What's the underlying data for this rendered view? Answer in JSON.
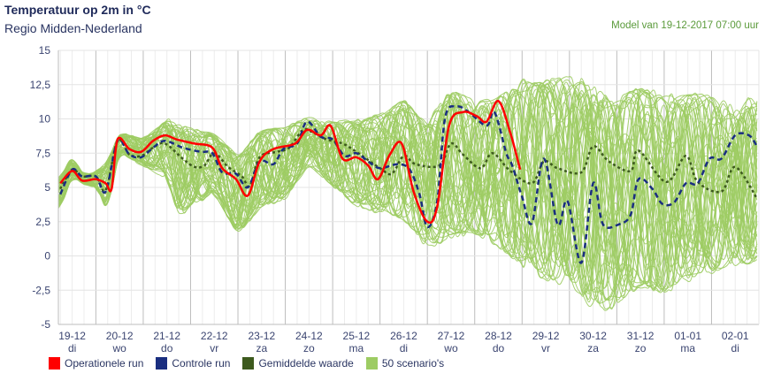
{
  "header": {
    "title": "Temperatuur op 2m in °C",
    "subtitle": "Regio Midden-Nederland",
    "model_run": "Model van 19-12-2017 07:00 uur"
  },
  "legend": [
    {
      "label": "Operationele run",
      "color": "#ff0000"
    },
    {
      "label": "Controle run",
      "color": "#1a2e80"
    },
    {
      "label": "Gemiddelde waarde",
      "color": "#3d5a1e"
    },
    {
      "label": "50 scenario's",
      "color": "#9dcc63"
    }
  ],
  "chart_data": {
    "type": "line",
    "title": "Temperatuur op 2m in °C",
    "ylabel": "°C",
    "x_unit": "hours since 19-12-2017 00:00",
    "xlim": [
      5,
      360
    ],
    "ylim": [
      -5,
      15
    ],
    "y_ticks": [
      "15",
      "12,5",
      "10",
      "7,5",
      "5",
      "2,5",
      "0",
      "-2,5",
      "-5"
    ],
    "y_tick_values": [
      15,
      12.5,
      10,
      7.5,
      5,
      2.5,
      0,
      -2.5,
      -5
    ],
    "x_ticks": [
      {
        "hour": 12,
        "date": "19-12",
        "day": "di"
      },
      {
        "hour": 36,
        "date": "20-12",
        "day": "wo"
      },
      {
        "hour": 60,
        "date": "21-12",
        "day": "do"
      },
      {
        "hour": 84,
        "date": "22-12",
        "day": "vr"
      },
      {
        "hour": 108,
        "date": "23-12",
        "day": "za"
      },
      {
        "hour": 132,
        "date": "24-12",
        "day": "zo"
      },
      {
        "hour": 156,
        "date": "25-12",
        "day": "ma"
      },
      {
        "hour": 180,
        "date": "26-12",
        "day": "di"
      },
      {
        "hour": 204,
        "date": "27-12",
        "day": "wo"
      },
      {
        "hour": 228,
        "date": "28-12",
        "day": "do"
      },
      {
        "hour": 252,
        "date": "29-12",
        "day": "vr"
      },
      {
        "hour": 276,
        "date": "30-12",
        "day": "za"
      },
      {
        "hour": 300,
        "date": "31-12",
        "day": "zo"
      },
      {
        "hour": 324,
        "date": "01-01",
        "day": "ma"
      },
      {
        "hour": 348,
        "date": "02-01",
        "day": "di"
      }
    ],
    "grid": true,
    "legend_position": "bottom-left",
    "series": [
      {
        "name": "Operationele run",
        "color": "#ff0000",
        "style": "solid",
        "points": [
          [
            6,
            5.3
          ],
          [
            12,
            6.2
          ],
          [
            17,
            5.5
          ],
          [
            24,
            5.6
          ],
          [
            29,
            5.3
          ],
          [
            32,
            4.9
          ],
          [
            35,
            8.5
          ],
          [
            41,
            7.8
          ],
          [
            47,
            7.6
          ],
          [
            53,
            8.4
          ],
          [
            59,
            8.8
          ],
          [
            65,
            8.5
          ],
          [
            74,
            8.2
          ],
          [
            83,
            7.9
          ],
          [
            88,
            6.4
          ],
          [
            95,
            5.6
          ],
          [
            101,
            4.4
          ],
          [
            107,
            6.9
          ],
          [
            114,
            7.8
          ],
          [
            125,
            8.2
          ],
          [
            131,
            9.2
          ],
          [
            138,
            8.8
          ],
          [
            143,
            9.5
          ],
          [
            149,
            7.1
          ],
          [
            156,
            7.2
          ],
          [
            162,
            6.6
          ],
          [
            167,
            5.6
          ],
          [
            173,
            7.4
          ],
          [
            179,
            8.2
          ],
          [
            185,
            4.7
          ],
          [
            192,
            2.5
          ],
          [
            197,
            3.6
          ],
          [
            203,
            9.5
          ],
          [
            210,
            10.5
          ],
          [
            217,
            10.2
          ],
          [
            222,
            9.8
          ],
          [
            228,
            11.3
          ],
          [
            234,
            9.0
          ],
          [
            239,
            6.3
          ]
        ]
      },
      {
        "name": "Controle run",
        "color": "#1a2e80",
        "style": "dashed",
        "points": [
          [
            6,
            4.5
          ],
          [
            12,
            6.3
          ],
          [
            17,
            5.8
          ],
          [
            24,
            5.8
          ],
          [
            29,
            4.7
          ],
          [
            35,
            8.4
          ],
          [
            41,
            7.4
          ],
          [
            47,
            7.2
          ],
          [
            53,
            7.9
          ],
          [
            59,
            8.4
          ],
          [
            68,
            7.9
          ],
          [
            77,
            7.6
          ],
          [
            83,
            7.5
          ],
          [
            88,
            6.1
          ],
          [
            95,
            6.0
          ],
          [
            101,
            5.0
          ],
          [
            107,
            6.9
          ],
          [
            114,
            6.7
          ],
          [
            119,
            7.8
          ],
          [
            126,
            8.2
          ],
          [
            131,
            9.8
          ],
          [
            138,
            8.7
          ],
          [
            144,
            8.5
          ],
          [
            150,
            7.3
          ],
          [
            156,
            7.5
          ],
          [
            162,
            6.9
          ],
          [
            168,
            6.4
          ],
          [
            177,
            6.7
          ],
          [
            183,
            6.3
          ],
          [
            188,
            4.5
          ],
          [
            192,
            2.1
          ],
          [
            197,
            4.0
          ],
          [
            201,
            10.1
          ],
          [
            207,
            10.9
          ],
          [
            213,
            10.5
          ],
          [
            222,
            9.5
          ],
          [
            226,
            10.5
          ],
          [
            232,
            7.5
          ],
          [
            235,
            6.6
          ],
          [
            240,
            4.3
          ],
          [
            245,
            2.4
          ],
          [
            251,
            7.1
          ],
          [
            258,
            2.3
          ],
          [
            263,
            4.0
          ],
          [
            270,
            -0.5
          ],
          [
            276,
            5.3
          ],
          [
            281,
            2.3
          ],
          [
            289,
            2.3
          ],
          [
            295,
            3.0
          ],
          [
            299,
            5.6
          ],
          [
            306,
            4.9
          ],
          [
            311,
            3.8
          ],
          [
            317,
            3.9
          ],
          [
            323,
            5.3
          ],
          [
            329,
            5.3
          ],
          [
            335,
            7.1
          ],
          [
            341,
            7.1
          ],
          [
            348,
            8.8
          ],
          [
            355,
            8.8
          ],
          [
            359,
            8.0
          ]
        ]
      },
      {
        "name": "Gemiddelde waarde",
        "color": "#3d5a1e",
        "style": "dotted",
        "points": [
          [
            6,
            4.9
          ],
          [
            12,
            6.3
          ],
          [
            17,
            5.8
          ],
          [
            24,
            5.8
          ],
          [
            29,
            4.8
          ],
          [
            35,
            8.4
          ],
          [
            41,
            7.4
          ],
          [
            47,
            7.3
          ],
          [
            53,
            7.9
          ],
          [
            59,
            8.2
          ],
          [
            68,
            7.1
          ],
          [
            74,
            6.5
          ],
          [
            79,
            6.6
          ],
          [
            84,
            7.5
          ],
          [
            91,
            6.5
          ],
          [
            98,
            5.8
          ],
          [
            102,
            5.1
          ],
          [
            107,
            7.2
          ],
          [
            116,
            7.6
          ],
          [
            122,
            7.9
          ],
          [
            129,
            9.2
          ],
          [
            134,
            9.0
          ],
          [
            141,
            8.5
          ],
          [
            149,
            8.2
          ],
          [
            156,
            7.6
          ],
          [
            168,
            6.4
          ],
          [
            174,
            6.0
          ],
          [
            180,
            7.3
          ],
          [
            186,
            6.7
          ],
          [
            198,
            6.6
          ],
          [
            204,
            8.2
          ],
          [
            210,
            7.4
          ],
          [
            219,
            6.4
          ],
          [
            225,
            7.5
          ],
          [
            234,
            6.2
          ],
          [
            245,
            5.3
          ],
          [
            251,
            6.9
          ],
          [
            258,
            6.4
          ],
          [
            270,
            6.1
          ],
          [
            276,
            8.0
          ],
          [
            284,
            6.9
          ],
          [
            295,
            6.2
          ],
          [
            299,
            7.7
          ],
          [
            313,
            5.4
          ],
          [
            323,
            7.3
          ],
          [
            329,
            5.4
          ],
          [
            341,
            4.7
          ],
          [
            348,
            6.5
          ],
          [
            359,
            4.2
          ]
        ]
      }
    ],
    "scenarios": {
      "name": "50 scenario's",
      "count": 50,
      "color": "#9dcc63",
      "envelope_hours": [
        6,
        12,
        18,
        24,
        30,
        36,
        48,
        60,
        66,
        72,
        84,
        96,
        108,
        120,
        132,
        144,
        156,
        168,
        180,
        192,
        204,
        216,
        228,
        240,
        252,
        264,
        276,
        288,
        300,
        312,
        324,
        336,
        348,
        360
      ],
      "min": [
        3.4,
        5.7,
        5.2,
        5.0,
        3.3,
        7.5,
        6.5,
        5.5,
        2.7,
        3.5,
        4.5,
        1.4,
        3.5,
        4.0,
        6.5,
        5.0,
        3.5,
        3.0,
        2.5,
        0.5,
        1.0,
        1.5,
        0.5,
        -1.0,
        -2.0,
        -2.5,
        -4.3,
        -4.2,
        -2.5,
        -3.0,
        -2.0,
        -1.5,
        -1.0,
        -0.8
      ],
      "max": [
        5.8,
        7.3,
        6.0,
        6.2,
        7.0,
        9.0,
        8.6,
        10.0,
        9.8,
        9.5,
        9.0,
        7.5,
        9.3,
        9.5,
        10.2,
        10.0,
        10.0,
        10.5,
        11.5,
        10.0,
        12.5,
        11.5,
        12.0,
        13.2,
        13.0,
        13.5,
        12.5,
        12.0,
        12.5,
        12.0,
        12.0,
        12.0,
        11.0,
        12.2
      ]
    }
  }
}
